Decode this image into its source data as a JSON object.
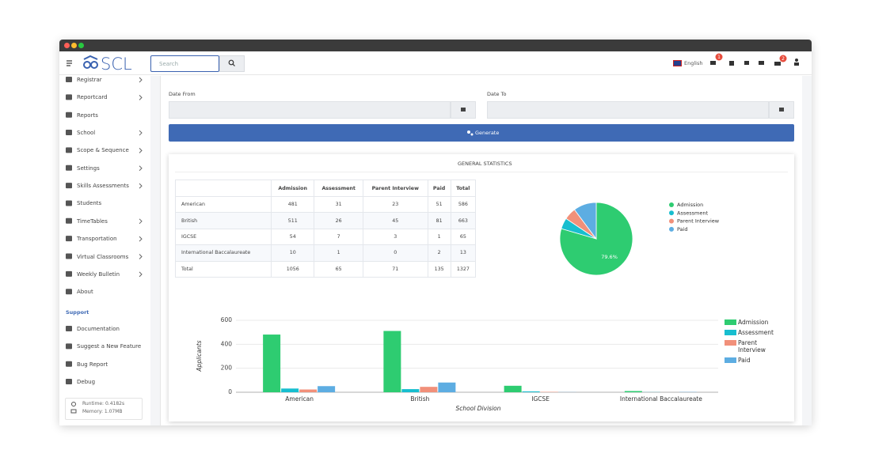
{
  "header": {
    "logo": "SCL",
    "search_placeholder": "Search",
    "language": "English",
    "badges": [
      "1",
      "2"
    ]
  },
  "sidebar": {
    "items": [
      {
        "label": "Registrar",
        "submenu": true
      },
      {
        "label": "Reportcard",
        "submenu": true
      },
      {
        "label": "Reports",
        "submenu": false
      },
      {
        "label": "School",
        "submenu": true
      },
      {
        "label": "Scope & Sequence",
        "submenu": true
      },
      {
        "label": "Settings",
        "submenu": true
      },
      {
        "label": "Skills Assessments",
        "submenu": true
      },
      {
        "label": "Students",
        "submenu": false
      },
      {
        "label": "TimeTables",
        "submenu": true
      },
      {
        "label": "Transportation",
        "submenu": true
      },
      {
        "label": "Virtual Classrooms",
        "submenu": true
      },
      {
        "label": "Weekly Bulletin",
        "submenu": true
      },
      {
        "label": "About",
        "submenu": false
      }
    ],
    "support_title": "Support",
    "support_items": [
      "Documentation",
      "Suggest a New Feature",
      "Bug Report",
      "Debug"
    ],
    "runtime": "Runtime: 0.4182s",
    "memory": "Memory: 1.07MB"
  },
  "filters": {
    "date_from": "Date From",
    "date_to": "Date To",
    "generate": "Generate"
  },
  "panel_title": "GENERAL STATISTICS",
  "table": {
    "columns": [
      "Admission",
      "Assessment",
      "Parent Interview",
      "Paid",
      "Total"
    ],
    "rows": [
      [
        "American",
        481,
        31,
        23,
        51,
        586
      ],
      [
        "British",
        511,
        26,
        45,
        81,
        663
      ],
      [
        "IGCSE",
        54,
        7,
        3,
        1,
        65
      ],
      [
        "International Baccalaureate",
        10,
        1,
        0,
        2,
        13
      ],
      [
        "Total",
        1056,
        65,
        71,
        135,
        1327
      ]
    ]
  },
  "chart_data": [
    {
      "type": "pie",
      "categories": [
        "Admission",
        "Assessment",
        "Parent Interview",
        "Paid"
      ],
      "values": [
        79.6,
        4.9,
        5.4,
        10.2
      ],
      "value_labels": [
        "79.6%",
        null,
        null,
        null
      ],
      "colors": [
        "#2ecc71",
        "#17becf",
        "#f1907a",
        "#5dade2"
      ],
      "legend": "right"
    },
    {
      "type": "bar",
      "categories": [
        "American",
        "British",
        "IGCSE",
        "International Baccalaureate"
      ],
      "x_label": "School Division",
      "y_label": "Applicants",
      "series": [
        {
          "name": "Admission",
          "color": "#2ecc71",
          "values": [
            481,
            511,
            54,
            10
          ]
        },
        {
          "name": "Assessment",
          "color": "#17becf",
          "values": [
            31,
            26,
            7,
            1
          ]
        },
        {
          "name": "Parent Interview",
          "color": "#f1907a",
          "values": [
            23,
            45,
            3,
            0
          ]
        },
        {
          "name": "Paid",
          "color": "#5dade2",
          "values": [
            51,
            81,
            1,
            2
          ]
        }
      ],
      "ylim": [
        0,
        600
      ],
      "yticks": [
        0,
        200,
        400,
        600
      ],
      "grid": true,
      "legend": "right"
    }
  ]
}
